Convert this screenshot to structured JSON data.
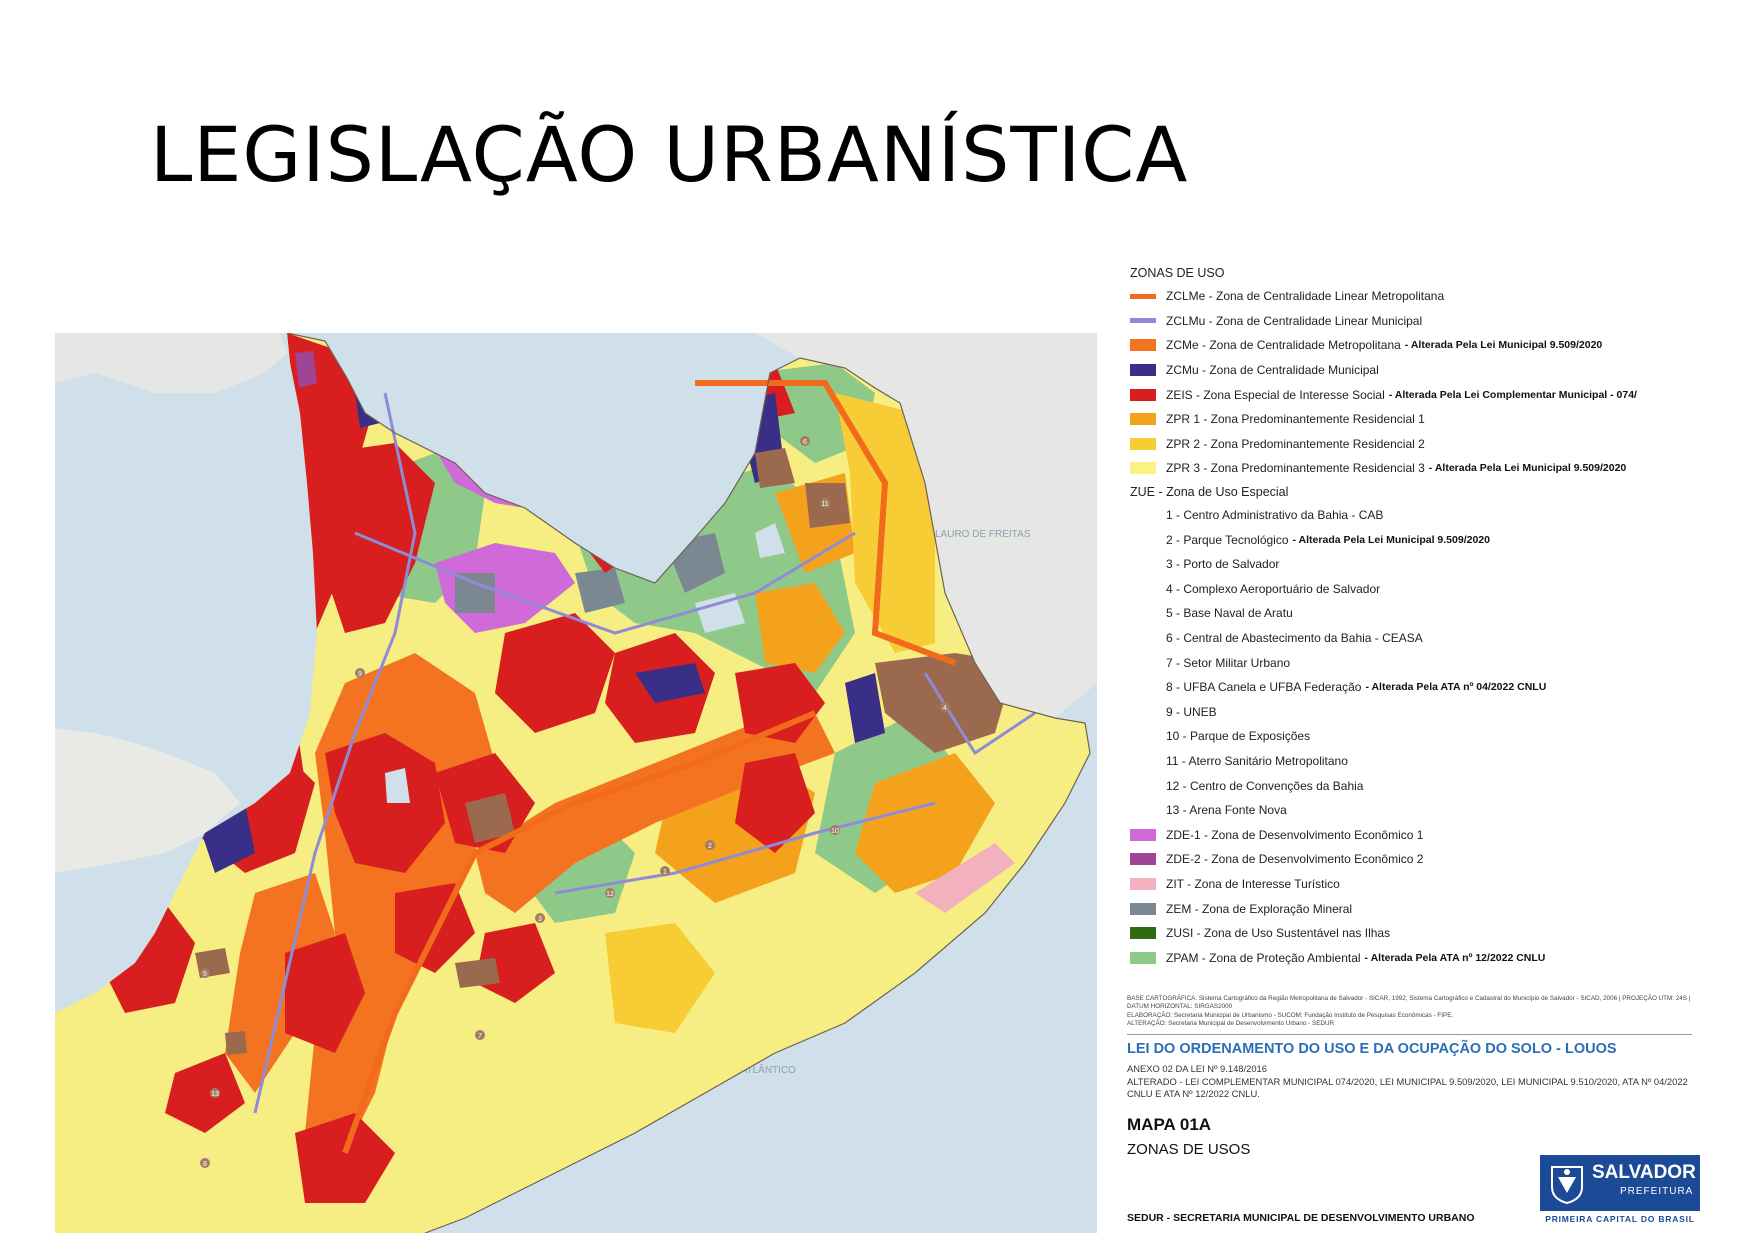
{
  "title": "LEGISLAÇÃO URBANÍSTICA",
  "map": {
    "labels": {
      "lauro": "LAURO DE FREITAS",
      "oceano": "OCEANO ATLÂNTICO"
    },
    "zue_markers": [
      "6",
      "11",
      "4",
      "3",
      "2",
      "1",
      "12",
      "7",
      "10",
      "9",
      "8",
      "5",
      "13"
    ]
  },
  "legend": {
    "heading": "ZONAS DE USO",
    "zones": [
      {
        "code": "ZCLMe",
        "label": "ZCLMe - Zona de Centralidade Linear Metropolitana",
        "note": "",
        "color": "#f26a1b",
        "kind": "line"
      },
      {
        "code": "ZCLMu",
        "label": "ZCLMu - Zona de Centralidade Linear Municipal",
        "note": "",
        "color": "#8f8bd6",
        "kind": "line"
      },
      {
        "code": "ZCMe",
        "label": "ZCMe - Zona de Centralidade Metropolitana",
        "note": "- Alterada Pela Lei Municipal 9.509/2020",
        "color": "#f47321",
        "kind": "fill"
      },
      {
        "code": "ZCMu",
        "label": "ZCMu - Zona de Centralidade Municipal",
        "note": "",
        "color": "#3a2f86",
        "kind": "fill"
      },
      {
        "code": "ZEIS",
        "label": "ZEIS - Zona Especial de Interesse Social",
        "note": "- Alterada Pela Lei Complementar Municipal - 074/",
        "color": "#d81e1e",
        "kind": "fill"
      },
      {
        "code": "ZPR1",
        "label": "ZPR 1 - Zona Predominantemente Residencial 1",
        "note": "",
        "color": "#f4a21c",
        "kind": "fill"
      },
      {
        "code": "ZPR2",
        "label": "ZPR 2 - Zona Predominantemente Residencial 2",
        "note": "",
        "color": "#f7cc34",
        "kind": "fill"
      },
      {
        "code": "ZPR3",
        "label": "ZPR 3 - Zona Predominantemente Residencial 3",
        "note": "- Alterada Pela Lei Municipal 9.509/2020",
        "color": "#fbf284",
        "kind": "fill"
      }
    ],
    "zue_heading": "ZUE - Zona de Uso Especial",
    "zue": [
      {
        "label": "1 - Centro Administrativo da Bahia - CAB",
        "note": ""
      },
      {
        "label": "2 - Parque Tecnológico",
        "note": "- Alterada Pela Lei Municipal 9.509/2020"
      },
      {
        "label": "3 - Porto de Salvador",
        "note": ""
      },
      {
        "label": "4 - Complexo Aeroportuário de Salvador",
        "note": ""
      },
      {
        "label": "5 - Base Naval de Aratu",
        "note": ""
      },
      {
        "label": "6 - Central de Abastecimento da Bahia - CEASA",
        "note": ""
      },
      {
        "label": "7 - Setor Militar Urbano",
        "note": ""
      },
      {
        "label": "8 - UFBA Canela e UFBA Federação",
        "note": "- Alterada Pela ATA nº 04/2022 CNLU"
      },
      {
        "label": "9 - UNEB",
        "note": ""
      },
      {
        "label": "10 - Parque de Exposições",
        "note": ""
      },
      {
        "label": "11 - Aterro Sanitário Metropolitano",
        "note": ""
      },
      {
        "label": "12 - Centro de Convenções da Bahia",
        "note": ""
      },
      {
        "label": "13 - Arena Fonte Nova",
        "note": ""
      }
    ],
    "others": [
      {
        "label": "ZDE-1 - Zona de Desenvolvimento Econômico 1",
        "note": "",
        "color": "#cf6ad8"
      },
      {
        "label": "ZDE-2 - Zona de Desenvolvimento Econômico 2",
        "note": "",
        "color": "#a04496"
      },
      {
        "label": "ZIT - Zona de Interesse Turístico",
        "note": "",
        "color": "#f3b0bd"
      },
      {
        "label": "ZEM - Zona de Exploração Mineral",
        "note": "",
        "color": "#7b8791"
      },
      {
        "label": "ZUSI - Zona de Uso Sustentável nas Ilhas",
        "note": "",
        "color": "#2f6b12"
      },
      {
        "label": "ZPAM - Zona de Proteção Ambiental",
        "note": "- Alterada Pela ATA nº 12/2022 CNLU",
        "color": "#8fc98a"
      }
    ]
  },
  "footer": {
    "base": "BASE CARTOGRÁFICA: Sistema Cartográfico da Região Metropolitana de Salvador - SICAR, 1992; Sistema Cartográfico e Cadastral do Município de Salvador - SICAD, 2006 | PROJEÇÃO UTM: 24S | DATUM HORIZONTAL: SIRGAS2000",
    "elaboracao": "ELABORAÇÃO: Secretaria Municipal de Urbanismo - SUCOM; Fundação Instituto de Pesquisas Econômicas - FIPE.",
    "alteracao": "ALTERAÇÃO: Secretaria Municipal de Desenvolvimento Urbano - SEDUR",
    "law_title": "LEI DO ORDENAMENTO DO USO E DA OCUPAÇÃO DO SOLO - LOUOS",
    "annex": "ANEXO 02 DA LEI Nº 9.148/2016",
    "altered": "ALTERADO - LEI COMPLEMENTAR MUNICIPAL 074/2020, LEI MUNICIPAL 9.509/2020, LEI MUNICIPAL 9.510/2020, ATA Nº 04/2022 CNLU E ATA Nº 12/2022 CNLU.",
    "map_number": "MAPA 01A",
    "map_subtitle": "ZONAS DE USOS",
    "sedur": "SEDUR - SECRETARIA MUNICIPAL DE DESENVOLVIMENTO URBANO"
  },
  "logo": {
    "name": "SALVADOR",
    "sub": "PREFEITURA",
    "tagline": "PRIMEIRA CAPITAL DO BRASIL"
  }
}
